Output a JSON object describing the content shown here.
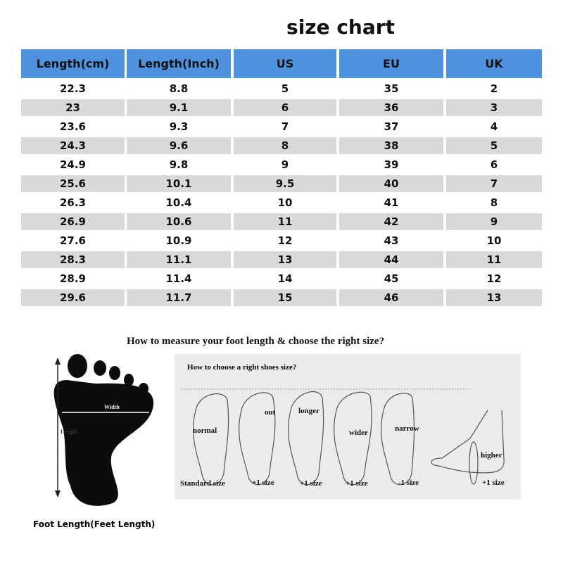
{
  "title": "size chart",
  "table": {
    "headers": [
      "Length(cm)",
      "Length(Inch)",
      "US",
      "EU",
      "UK"
    ],
    "columns": [
      [
        "22.3",
        "23",
        "23.6",
        "24.3",
        "24.9",
        "25.6",
        "26.3",
        "26.9",
        "27.6",
        "28.3",
        "28.9",
        "29.6"
      ],
      [
        "8.8",
        "9.1",
        "9.3",
        "9.6",
        "9.8",
        "10.1",
        "10.4",
        "10.6",
        "10.9",
        "11.1",
        "11.4",
        "11.7"
      ],
      [
        "5",
        "6",
        "7",
        "8",
        "9",
        "9.5",
        "10",
        "11",
        "12",
        "13",
        "14",
        "15"
      ],
      [
        "35",
        "36",
        "37",
        "38",
        "39",
        "40",
        "41",
        "42",
        "43",
        "44",
        "45",
        "46"
      ],
      [
        "2",
        "3",
        "4",
        "5",
        "6",
        "7",
        "8",
        "9",
        "10",
        "11",
        "12",
        "13"
      ]
    ],
    "header_color": "#4f93de",
    "stripe_color": "#d9d9d9"
  },
  "measure": {
    "title": "How to measure your foot length & choose the right size?",
    "width_label": "Width",
    "length_label": "Length",
    "caption": "Foot Length(Feet Length)"
  },
  "choose": {
    "title": "How to choose a right shoes size?",
    "feet": [
      {
        "label": "normal",
        "size": "Standard size"
      },
      {
        "label": "out",
        "size": "+1 size"
      },
      {
        "label": "longer",
        "size": "+1 size"
      },
      {
        "label": "wider",
        "size": "+1 size"
      },
      {
        "label": "narrow",
        "size": "-1 size"
      },
      {
        "label": "higher",
        "size": "+1 size"
      }
    ]
  }
}
